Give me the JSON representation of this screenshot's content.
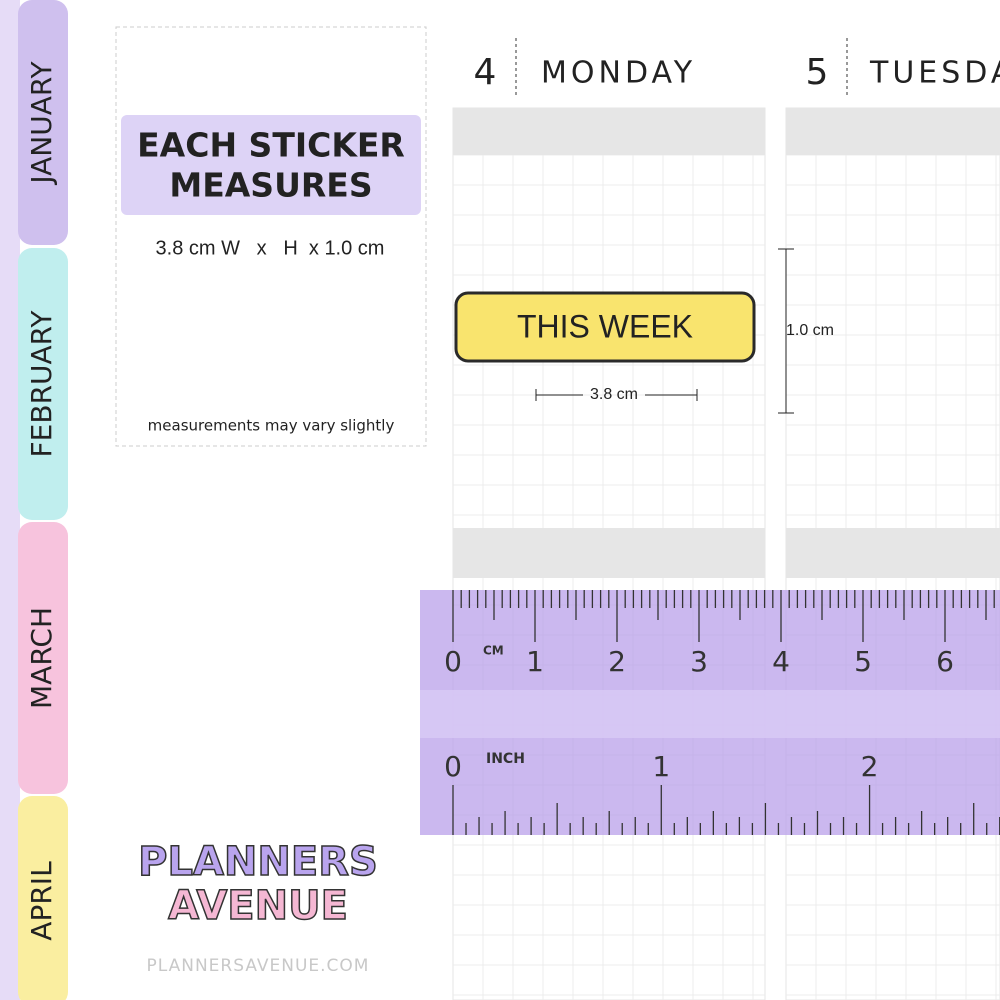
{
  "tabs": [
    "JANUARY",
    "FEBRUARY",
    "MARCH",
    "APRIL"
  ],
  "info": {
    "title_line1": "EACH STICKER",
    "title_line2": "MEASURES",
    "dimensions": "3.8 cm W   x   H  x 1.0 cm",
    "note": "measurements may vary slightly"
  },
  "days": [
    {
      "number": "4",
      "name": "MONDAY"
    },
    {
      "number": "5",
      "name": "TUESDAY"
    }
  ],
  "sticker": {
    "text": "THIS WEEK",
    "width_label": "3.8 cm",
    "height_label": "1.0 cm"
  },
  "ruler": {
    "cm_unit": "CM",
    "cm_labels": [
      "0",
      "1",
      "2",
      "3",
      "4",
      "5",
      "6"
    ],
    "inch_unit": "INCH",
    "inch_labels": [
      "0",
      "1",
      "2"
    ]
  },
  "brand": {
    "line1": "PLANNERS",
    "line2": "AVENUE",
    "website": "PLANNERSAVENUE.COM"
  }
}
